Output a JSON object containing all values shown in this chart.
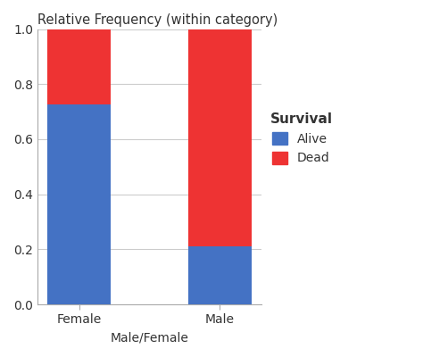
{
  "categories": [
    "Female",
    "Male"
  ],
  "alive_values": [
    0.727,
    0.21
  ],
  "dead_values": [
    0.273,
    0.79
  ],
  "alive_color": "#4472C4",
  "dead_color": "#EE3333",
  "title": "Relative Frequency (within category)",
  "xlabel": "Male/Female",
  "ylim": [
    0,
    1
  ],
  "yticks": [
    0,
    0.2,
    0.4,
    0.6,
    0.8,
    1.0
  ],
  "legend_title": "Survival",
  "legend_labels": [
    "Alive",
    "Dead"
  ],
  "bar_width": 0.45,
  "title_fontsize": 10.5,
  "axis_fontsize": 10,
  "tick_fontsize": 10,
  "legend_fontsize": 10,
  "legend_title_fontsize": 11,
  "figsize": [
    4.74,
    4.0
  ],
  "dpi": 100
}
